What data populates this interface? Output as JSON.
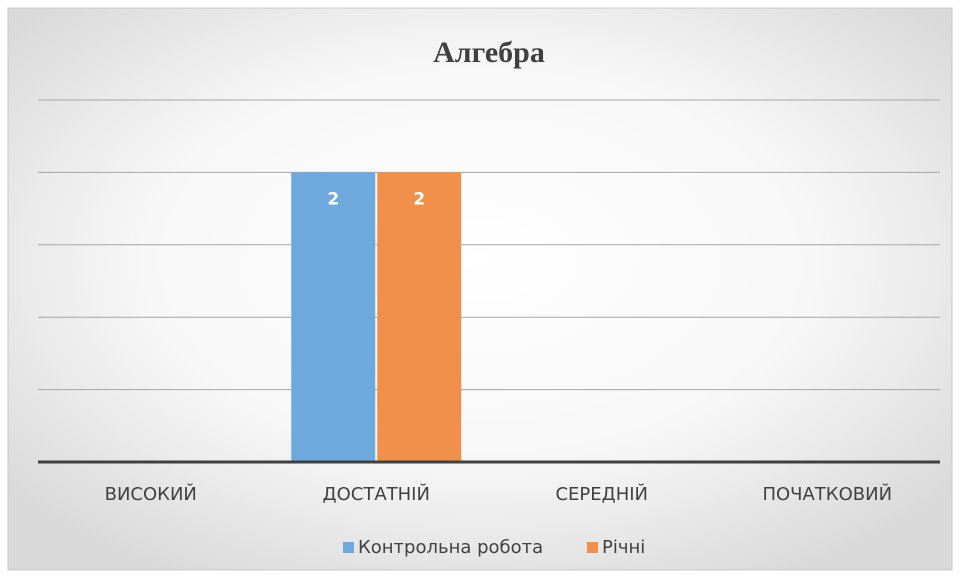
{
  "chart_data": {
    "type": "bar",
    "title": "Алгебра",
    "categories": [
      "ВИСОКИЙ",
      "ДОСТАТНІЙ",
      "СЕРЕДНІЙ",
      "ПОЧАТКОВИЙ"
    ],
    "series": [
      {
        "name": "Контрольна робота",
        "color": "#6fa8dc",
        "values": [
          null,
          2,
          null,
          null
        ]
      },
      {
        "name": "Річні",
        "color": "#f0904a",
        "values": [
          null,
          2,
          null,
          null
        ]
      }
    ],
    "ylim": [
      0,
      2.5
    ],
    "yticks": [
      0,
      0.5,
      1,
      1.5,
      2,
      2.5
    ],
    "grid": true,
    "legend": "bottom"
  }
}
